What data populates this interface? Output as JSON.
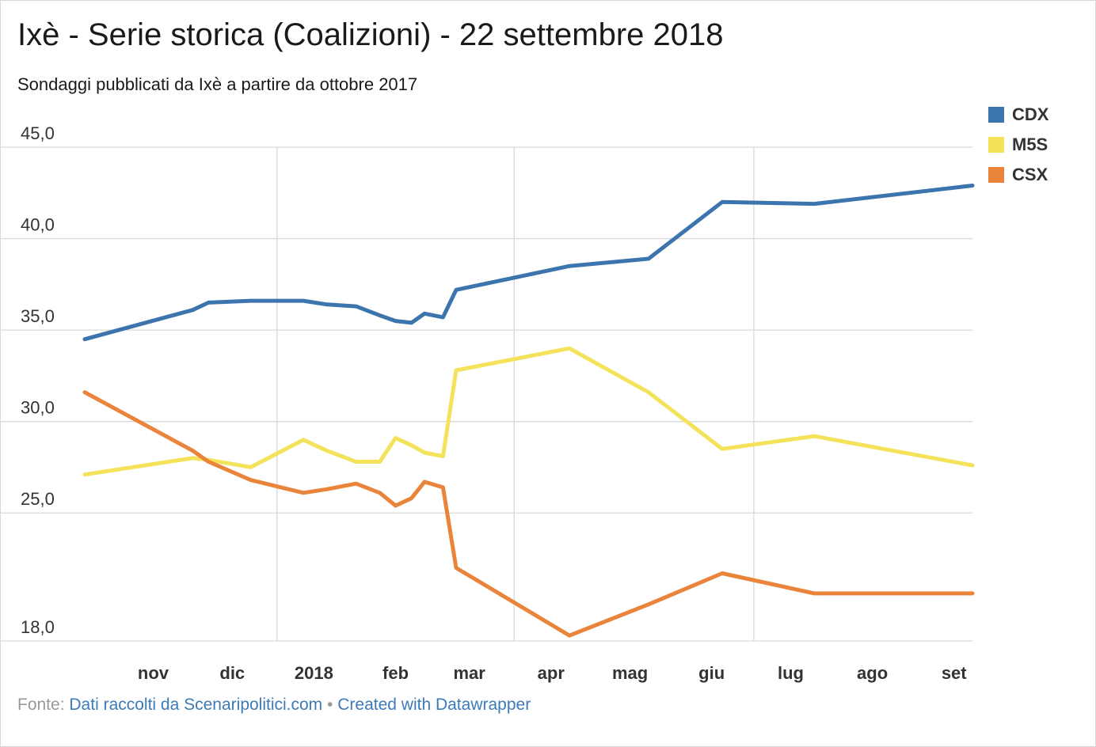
{
  "title": "Ixè - Serie storica (Coalizioni) - 22 settembre 2018",
  "subtitle": "Sondaggi pubblicati da Ixè a partire da ottobre 2017",
  "footer": {
    "source_label": "Fonte:",
    "source_link": "Dati raccolti da Scenaripolitici.com",
    "separator": "•",
    "created_link": "Created with Datawrapper"
  },
  "chart_data": {
    "type": "line",
    "title": "Ixè - Serie storica (Coalizioni) - 22 settembre 2018",
    "y_tick_labels": [
      "45,0",
      "40,0",
      "35,0",
      "30,0",
      "25,0",
      "18,0"
    ],
    "y_ticks": [
      45,
      40,
      35,
      30,
      25,
      18
    ],
    "ylim": [
      18,
      45
    ],
    "x_tick_labels": [
      "nov",
      "dic",
      "2018",
      "feb",
      "mar",
      "apr",
      "mag",
      "giu",
      "lug",
      "ago",
      "set"
    ],
    "x_tick_dates": [
      "2017-11-15",
      "2017-12-15",
      "2018-01-15",
      "2018-02-15",
      "2018-03-15",
      "2018-04-15",
      "2018-05-15",
      "2018-06-15",
      "2018-07-15",
      "2018-08-15",
      "2018-09-15"
    ],
    "x_gridlines": [
      "2018-01-01",
      "2018-04-01",
      "2018-07-01"
    ],
    "xlim": [
      "2017-10-20",
      "2018-09-22"
    ],
    "gap_between": [
      "2018-02-22",
      "2018-03-10"
    ],
    "legend_position": "top-right",
    "grid": true,
    "series": [
      {
        "name": "CDX",
        "color": "#3c74ad",
        "points": [
          [
            "2017-10-20",
            34.5
          ],
          [
            "2017-11-30",
            36.1
          ],
          [
            "2017-12-06",
            36.5
          ],
          [
            "2017-12-22",
            36.6
          ],
          [
            "2018-01-11",
            36.6
          ],
          [
            "2018-01-20",
            36.4
          ],
          [
            "2018-01-31",
            36.3
          ],
          [
            "2018-02-09",
            35.8
          ],
          [
            "2018-02-15",
            35.5
          ],
          [
            "2018-02-21",
            35.4
          ],
          [
            "2018-02-26",
            35.9
          ],
          [
            "2018-03-05",
            35.7
          ],
          [
            "2018-03-10",
            37.2
          ],
          [
            "2018-04-22",
            38.5
          ],
          [
            "2018-05-22",
            38.9
          ],
          [
            "2018-06-19",
            42.0
          ],
          [
            "2018-07-24",
            41.9
          ],
          [
            "2018-09-22",
            42.9
          ]
        ]
      },
      {
        "name": "M5S",
        "color": "#f4e35a",
        "points": [
          [
            "2017-10-20",
            27.1
          ],
          [
            "2017-11-30",
            28.0
          ],
          [
            "2017-12-06",
            27.9
          ],
          [
            "2017-12-22",
            27.5
          ],
          [
            "2018-01-11",
            29.0
          ],
          [
            "2018-01-20",
            28.4
          ],
          [
            "2018-01-31",
            27.8
          ],
          [
            "2018-02-09",
            27.8
          ],
          [
            "2018-02-15",
            29.1
          ],
          [
            "2018-02-21",
            28.7
          ],
          [
            "2018-02-26",
            28.3
          ],
          [
            "2018-03-05",
            28.1
          ],
          [
            "2018-03-10",
            32.8
          ],
          [
            "2018-04-22",
            34.0
          ],
          [
            "2018-05-22",
            31.6
          ],
          [
            "2018-06-19",
            28.5
          ],
          [
            "2018-07-24",
            29.2
          ],
          [
            "2018-09-22",
            27.6
          ]
        ]
      },
      {
        "name": "CSX",
        "color": "#e9843a",
        "points": [
          [
            "2017-10-20",
            31.6
          ],
          [
            "2017-11-30",
            28.4
          ],
          [
            "2017-12-06",
            27.8
          ],
          [
            "2017-12-22",
            26.8
          ],
          [
            "2018-01-11",
            26.1
          ],
          [
            "2018-01-20",
            26.3
          ],
          [
            "2018-01-31",
            26.6
          ],
          [
            "2018-02-09",
            26.1
          ],
          [
            "2018-02-15",
            25.4
          ],
          [
            "2018-02-21",
            25.8
          ],
          [
            "2018-02-26",
            26.7
          ],
          [
            "2018-03-05",
            26.4
          ],
          [
            "2018-03-10",
            22.0
          ],
          [
            "2018-04-22",
            18.3
          ],
          [
            "2018-05-22",
            20.0
          ],
          [
            "2018-06-19",
            21.7
          ],
          [
            "2018-07-24",
            20.6
          ],
          [
            "2018-09-22",
            20.6
          ]
        ]
      }
    ]
  }
}
